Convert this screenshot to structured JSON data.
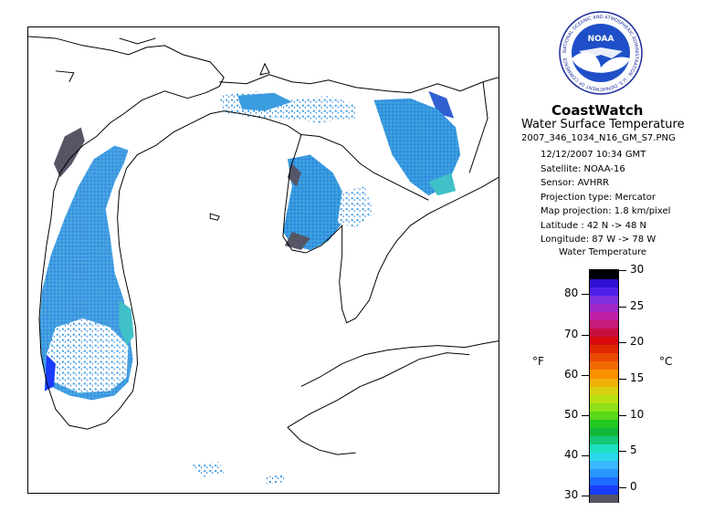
{
  "header": {
    "brand": "CoastWatch",
    "subtitle": "Water Surface Temperature",
    "filename": "2007_346_1034_N16_GM_S7.PNG",
    "logo_text": "NOAA",
    "logo_ring_text": "NATIONAL OCEANIC AND ATMOSPHERIC ADMINISTRATION · U.S. DEPARTMENT OF COMMERCE"
  },
  "meta": [
    "12/12/2007    10:34 GMT",
    "Satellite: NOAA-16",
    "Sensor: AVHRR",
    "Projection type:  Mercator",
    "Map projection: 1.8 km/pixel",
    "Latitude : 42 N -> 48 N",
    "Longitude: 87 W -> 78 W"
  ],
  "legend": {
    "title": "Water Temperature",
    "unit_f": "°F",
    "unit_c": "°C",
    "fahrenheit_ticks": [
      {
        "label": "80",
        "value": 80
      },
      {
        "label": "70",
        "value": 70
      },
      {
        "label": "60",
        "value": 60
      },
      {
        "label": "50",
        "value": 50
      },
      {
        "label": "40",
        "value": 40
      },
      {
        "label": "30",
        "value": 30
      }
    ],
    "celsius_ticks": [
      {
        "label": "30",
        "value": 30
      },
      {
        "label": "25",
        "value": 25
      },
      {
        "label": "20",
        "value": 20
      },
      {
        "label": "15",
        "value": 15
      },
      {
        "label": "10",
        "value": 10
      },
      {
        "label": "5",
        "value": 5
      },
      {
        "label": "0",
        "value": 0
      }
    ],
    "colors": [
      "#555566",
      "#1a3cff",
      "#1e6cff",
      "#2a96ff",
      "#3bb8ff",
      "#2ad8e8",
      "#1ee0c0",
      "#15c878",
      "#12b838",
      "#20c820",
      "#5ad81a",
      "#90e018",
      "#b8e010",
      "#d8d010",
      "#f0b008",
      "#f89000",
      "#f06a00",
      "#e84a00",
      "#e02800",
      "#d80a10",
      "#c81040",
      "#c81a78",
      "#c020a8",
      "#a028c8",
      "#8030e0",
      "#5020e8",
      "#3010d0",
      "#000000"
    ],
    "c_range": [
      -2,
      30
    ]
  },
  "map": {
    "water_colors": {
      "shallow_cold": "#4a70d8",
      "mid": "#3b9ce0",
      "warm": "#40c0c8",
      "ice": "#555566"
    }
  }
}
